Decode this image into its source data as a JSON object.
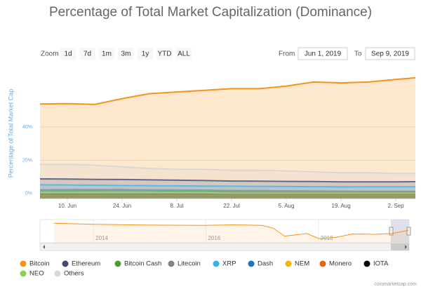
{
  "chart_data": [
    {
      "type": "line",
      "title": "Percentage of Total Market Capitalization (Dominance)",
      "y_label": "Percentage of Total Market Cap",
      "range_selector": {
        "label": "Zoom",
        "buttons": [
          "1d",
          "7d",
          "1m",
          "3m",
          "1y",
          "YTD",
          "ALL"
        ]
      },
      "date_range": {
        "from_label": "From",
        "from": "Jun 1, 2019",
        "to_label": "To",
        "to": "Sep 9, 2019"
      },
      "credit": "coinmarketcap.com",
      "x": [
        "2019-06-03",
        "2019-06-10",
        "2019-06-17",
        "2019-06-24",
        "2019-07-01",
        "2019-07-08",
        "2019-07-15",
        "2019-07-22",
        "2019-07-29",
        "2019-08-05",
        "2019-08-12",
        "2019-08-19",
        "2019-08-26",
        "2019-09-02",
        "2019-09-07"
      ],
      "xlim": [
        "2019-06-03",
        "2019-09-07"
      ],
      "xticks": [
        {
          "value": "2019-06-10",
          "label": "10. Jun"
        },
        {
          "value": "2019-06-24",
          "label": "24. Jun"
        },
        {
          "value": "2019-07-08",
          "label": "8. Jul"
        },
        {
          "value": "2019-07-22",
          "label": "22. Jul"
        },
        {
          "value": "2019-08-05",
          "label": "5. Aug"
        },
        {
          "value": "2019-08-19",
          "label": "19. Aug"
        },
        {
          "value": "2019-09-02",
          "label": "2. Sep"
        }
      ],
      "ylim": [
        -3,
        72
      ],
      "yticks": [
        {
          "value": 0,
          "label": "0%"
        },
        {
          "value": 20,
          "label": "20%"
        },
        {
          "value": 40,
          "label": "40%"
        }
      ],
      "grid": true,
      "series": [
        {
          "name": "Bitcoin",
          "color": "#f7931a",
          "values": [
            53.8,
            54,
            53.5,
            57,
            60,
            61,
            62,
            63,
            63,
            64.5,
            67,
            66.5,
            67,
            68.5,
            69.5
          ]
        },
        {
          "name": "Ethereum",
          "color": "#454a75",
          "values": [
            8.8,
            8.7,
            8.5,
            8.4,
            8.2,
            8,
            7.8,
            7.5,
            7.4,
            7.3,
            7.2,
            7,
            7,
            7,
            7.1
          ]
        },
        {
          "name": "Bitcoin Cash",
          "color": "#4c9e2a",
          "values": [
            1.8,
            1.7,
            1.8,
            1.9,
            1.8,
            1.6,
            1.5,
            1.4,
            1.4,
            1.4,
            1.3,
            1.3,
            1.2,
            1.2,
            1.2
          ]
        },
        {
          "name": "Litecoin",
          "color": "#838383",
          "values": [
            2.2,
            2.3,
            2.4,
            2.3,
            2.2,
            2.1,
            2,
            1.8,
            1.7,
            1.6,
            1.5,
            1.4,
            1.3,
            1.3,
            1.3
          ]
        },
        {
          "name": "XRP",
          "color": "#35b4e6",
          "values": [
            5.2,
            5.1,
            5,
            4.8,
            4.7,
            4.6,
            4.5,
            4.4,
            4.3,
            4.2,
            4.1,
            4,
            4,
            4,
            4
          ]
        },
        {
          "name": "Dash",
          "color": "#1c75bc",
          "values": [
            0.4,
            0.4,
            0.4,
            0.4,
            0.4,
            0.4,
            0.3,
            0.3,
            0.3,
            0.3,
            0.3,
            0.3,
            0.3,
            0.3,
            0.3
          ]
        },
        {
          "name": "NEM",
          "color": "#f4b700",
          "values": [
            0.2,
            0.2,
            0.2,
            0.2,
            0.2,
            0.2,
            0.2,
            0.2,
            0.2,
            0.2,
            0.2,
            0.2,
            0.2,
            0.2,
            0.2
          ]
        },
        {
          "name": "Monero",
          "color": "#e8640c",
          "values": [
            0.5,
            0.5,
            0.5,
            0.5,
            0.5,
            0.5,
            0.5,
            0.5,
            0.5,
            0.5,
            0.5,
            0.5,
            0.5,
            0.5,
            0.5
          ]
        },
        {
          "name": "IOTA",
          "color": "#000000",
          "values": [
            0.3,
            0.3,
            0.3,
            0.3,
            0.3,
            0.3,
            0.3,
            0.3,
            0.3,
            0.3,
            0.3,
            0.3,
            0.3,
            0.3,
            0.3
          ]
        },
        {
          "name": "NEO",
          "color": "#8fd14f",
          "values": [
            0.4,
            0.4,
            0.4,
            0.4,
            0.4,
            0.4,
            0.4,
            0.3,
            0.3,
            0.3,
            0.3,
            0.3,
            0.3,
            0.3,
            0.3
          ]
        },
        {
          "name": "Others",
          "color": "#d8d8d8",
          "values": [
            17.5,
            17.5,
            17,
            16,
            15,
            14.5,
            14.5,
            14,
            14,
            13.5,
            13,
            12.5,
            12.5,
            12,
            12
          ]
        }
      ]
    },
    {
      "type": "navigator",
      "x": [
        2013.3,
        2014,
        2015,
        2016,
        2016.5,
        2017,
        2017.2,
        2017.4,
        2017.8,
        2018,
        2018.3,
        2018.6,
        2019,
        2019.3,
        2019.5,
        2019.6
      ],
      "xlim": [
        2013.15,
        2019.6
      ],
      "xticks": [
        2014,
        2016,
        2018
      ],
      "ylim": [
        20,
        100
      ],
      "color": "#f7931a",
      "values": [
        94,
        90,
        87,
        86,
        88,
        86,
        75,
        45,
        55,
        36,
        40,
        53,
        52,
        55,
        63,
        68
      ]
    }
  ]
}
